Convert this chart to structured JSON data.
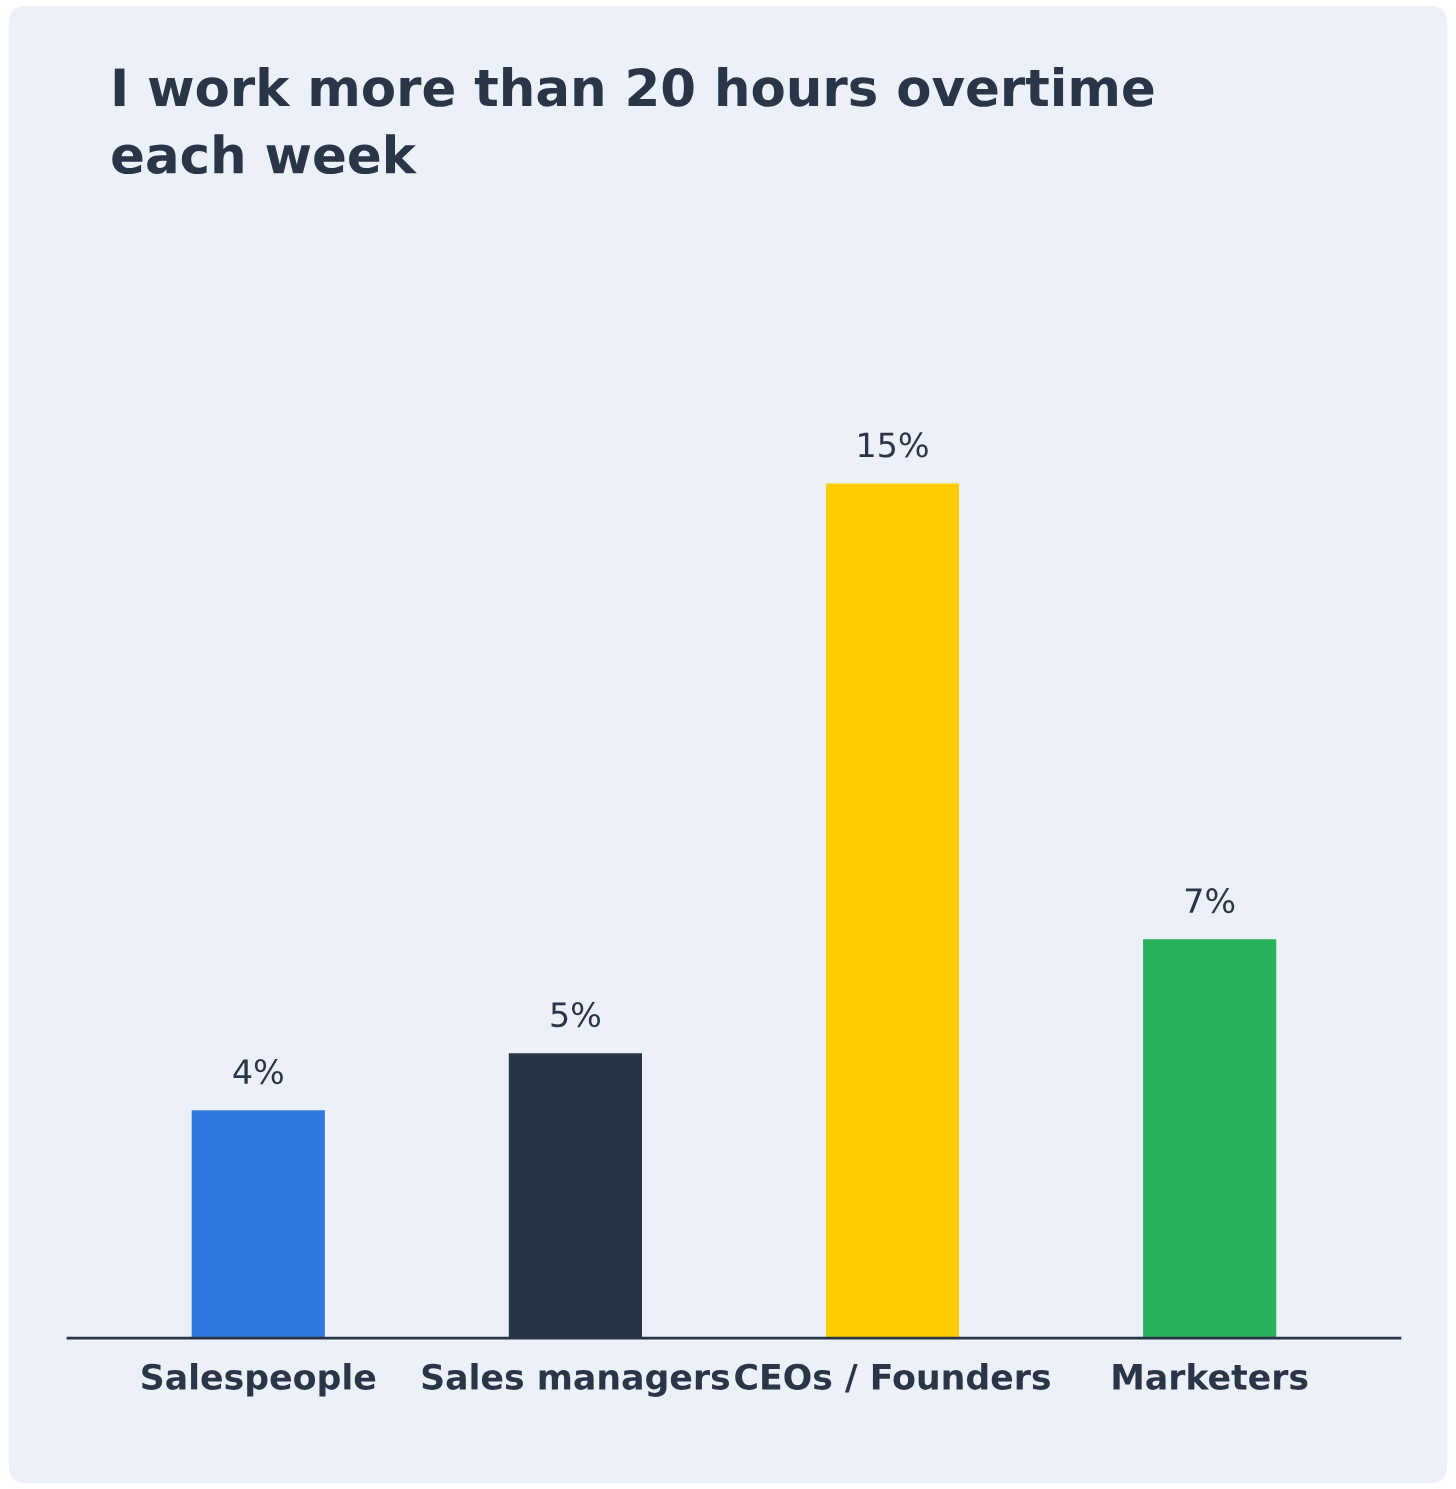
{
  "chart_data": {
    "type": "bar",
    "title": "I work more than 20 hours overtime\neach week",
    "categories": [
      "Salespeople",
      "Sales managers",
      "CEOs / Founders",
      "Marketers"
    ],
    "values": [
      4,
      5,
      15,
      7
    ],
    "colors": [
      "#3179e0",
      "#283547",
      "#ffcc00",
      "#27b25b"
    ],
    "value_labels": [
      "4%",
      "5%",
      "15%",
      "7%"
    ],
    "tick_labels": "x"
  }
}
